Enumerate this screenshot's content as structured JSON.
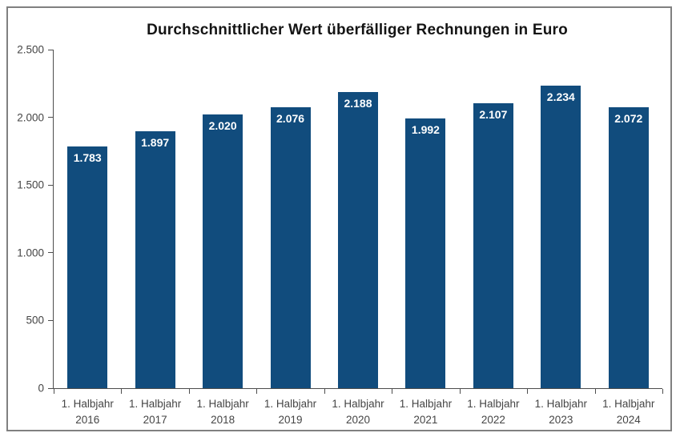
{
  "page": {
    "background": "#ffffff",
    "frame_border_color": "#808080"
  },
  "chart_data": {
    "type": "bar",
    "title": "Durchschnittlicher Wert überfälliger Rechnungen in Euro",
    "categories": [
      {
        "line1": "1. Halbjahr",
        "line2": "2016"
      },
      {
        "line1": "1. Halbjahr",
        "line2": "2017"
      },
      {
        "line1": "1. Halbjahr",
        "line2": "2018"
      },
      {
        "line1": "1. Halbjahr",
        "line2": "2019"
      },
      {
        "line1": "1. Halbjahr",
        "line2": "2020"
      },
      {
        "line1": "1. Halbjahr",
        "line2": "2021"
      },
      {
        "line1": "1. Halbjahr",
        "line2": "2022"
      },
      {
        "line1": "1. Halbjahr",
        "line2": "2023"
      },
      {
        "line1": "1. Halbjahr",
        "line2": "2024"
      }
    ],
    "values": [
      1783,
      1897,
      2020,
      2076,
      2188,
      1992,
      2107,
      2234,
      2072
    ],
    "value_labels": [
      "1.783",
      "1.897",
      "2.020",
      "2.076",
      "2.188",
      "1.992",
      "2.107",
      "2.234",
      "2.072"
    ],
    "xlabel": "",
    "ylabel": "",
    "ylim": [
      0,
      2500
    ],
    "ytick_values": [
      0,
      500,
      1000,
      1500,
      2000,
      2500
    ],
    "ytick_labels": [
      "0",
      "500",
      "1.000",
      "1.500",
      "2.000",
      "2.500"
    ],
    "grid": false,
    "legend": null,
    "bar_color": "#114C7D",
    "bar_label_color": "#FFFFFF",
    "axis_color": "#4D4D4D",
    "tick_label_color": "#454545",
    "title_color": "#141414"
  }
}
